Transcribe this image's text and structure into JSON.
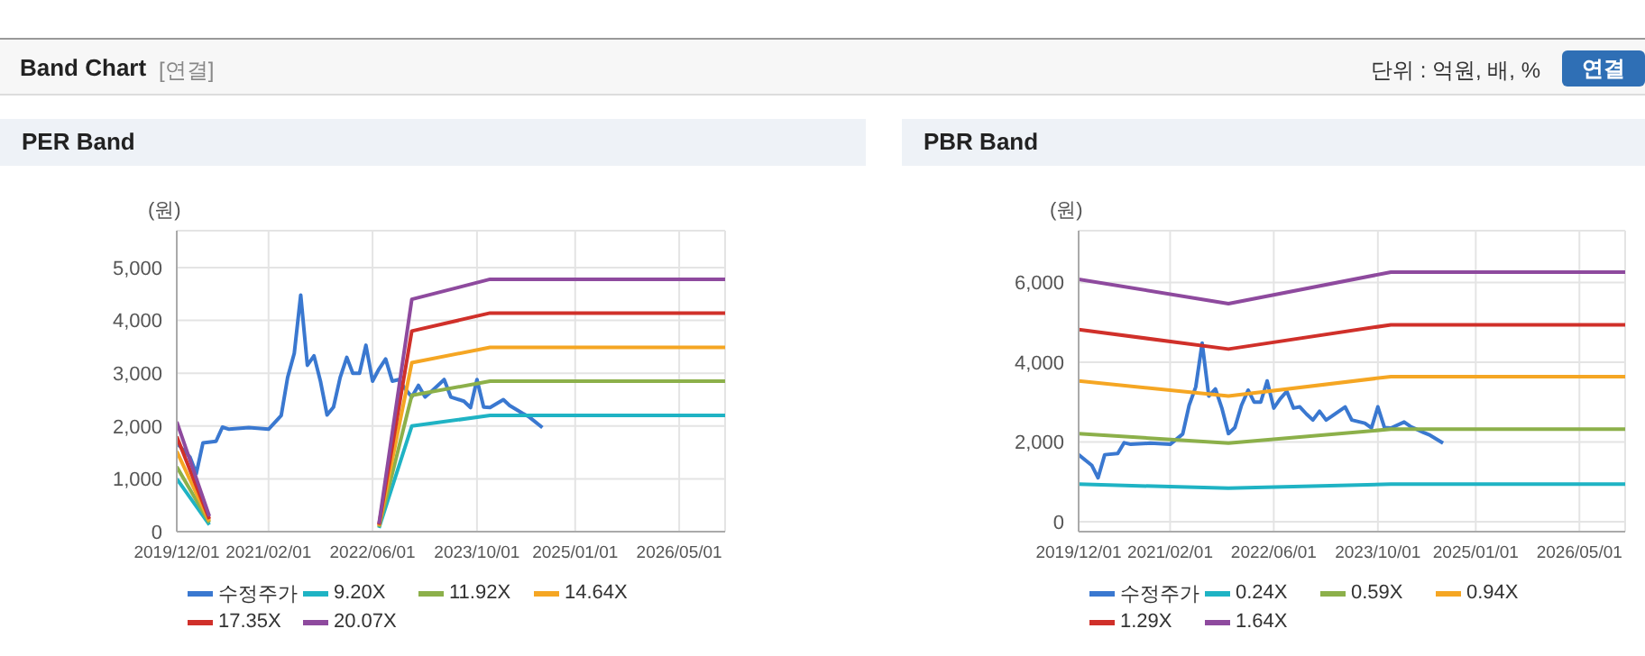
{
  "chart_data": [
    {
      "type": "line",
      "title": "PER Band",
      "ylabel": "(원)",
      "annotations": [
        "Band Chart",
        "[연결]",
        "단위 : 억원, 배, %",
        "연결"
      ],
      "xlim": [
        "2019-12-01",
        "2026-12-01"
      ],
      "xticks": [
        {
          "value": "2019-12-01",
          "label": "2019/12/01"
        },
        {
          "value": "2021-02-01",
          "label": "2021/02/01"
        },
        {
          "value": "2022-06-01",
          "label": "2022/06/01"
        },
        {
          "value": "2023-10-01",
          "label": "2023/10/01"
        },
        {
          "value": "2025-01-01",
          "label": "2025/01/01"
        },
        {
          "value": "2026-05-01",
          "label": "2026/05/01"
        }
      ],
      "ylim": [
        0,
        5700
      ],
      "yticks": [
        0,
        {
          "value": 1000,
          "label": "1,000"
        },
        {
          "value": 2000,
          "label": "2,000"
        },
        {
          "value": 3000,
          "label": "3,000"
        },
        {
          "value": 4000,
          "label": "4,000"
        },
        {
          "value": 5000,
          "label": "5,000"
        }
      ],
      "grid": true,
      "legend": "bottom",
      "series": [
        {
          "name": "수정주가",
          "color": "#3a78d0",
          "x": [
            "2019-12",
            "2020-02",
            "2020-03",
            "2020-04",
            "2020-06",
            "2020-07",
            "2020-08",
            "2020-11",
            "2021-02",
            "2021-04",
            "2021-05",
            "2021-06",
            "2021-07",
            "2021-08",
            "2021-09",
            "2021-10",
            "2021-11",
            "2021-12",
            "2022-01",
            "2022-02",
            "2022-03",
            "2022-04",
            "2022-05",
            "2022-06",
            "2022-07",
            "2022-08",
            "2022-09",
            "2022-10",
            "2022-11",
            "2022-12",
            "2023-01",
            "2023-02",
            "2023-03",
            "2023-05",
            "2023-06",
            "2023-08",
            "2023-09",
            "2023-10",
            "2023-11",
            "2023-12",
            "2024-02",
            "2024-03",
            "2024-05",
            "2024-06",
            "2024-08"
          ],
          "values": [
            1680,
            1410,
            1100,
            1680,
            1710,
            1980,
            1940,
            1970,
            1940,
            2200,
            2920,
            3380,
            4480,
            3150,
            3330,
            2850,
            2210,
            2360,
            2920,
            3300,
            3000,
            3000,
            3530,
            2850,
            3080,
            3270,
            2850,
            2880,
            2700,
            2550,
            2770,
            2550,
            2650,
            2880,
            2550,
            2470,
            2350,
            2880,
            2360,
            2350,
            2500,
            2390,
            2240,
            2170,
            1970
          ]
        },
        {
          "name": "9.20X",
          "color": "#1fb3c4",
          "x": [
            "2019-12",
            "2020-05",
            "2021-06",
            "2022-07",
            "2022-12",
            "2023-12",
            "2026-12"
          ],
          "values": [
            1000,
            130,
            null,
            70,
            2000,
            2200,
            2200
          ]
        },
        {
          "name": "11.92X",
          "color": "#8cb04a",
          "x": [
            "2019-12",
            "2020-05",
            "2021-06",
            "2022-07",
            "2022-12",
            "2023-12",
            "2026-12"
          ],
          "values": [
            1230,
            170,
            null,
            90,
            2580,
            2850,
            2850
          ]
        },
        {
          "name": "14.64X",
          "color": "#f5a623",
          "x": [
            "2019-12",
            "2020-05",
            "2021-06",
            "2022-07",
            "2022-12",
            "2023-12",
            "2026-12"
          ],
          "values": [
            1520,
            200,
            null,
            110,
            3200,
            3490,
            3490
          ]
        },
        {
          "name": "17.35X",
          "color": "#d0302a",
          "x": [
            "2019-12",
            "2020-05",
            "2021-06",
            "2022-07",
            "2022-12",
            "2023-12",
            "2026-12"
          ],
          "values": [
            1800,
            240,
            null,
            130,
            3800,
            4140,
            4140
          ]
        },
        {
          "name": "20.07X",
          "color": "#8e4a9e",
          "x": [
            "2019-12",
            "2020-05",
            "2021-06",
            "2022-07",
            "2022-12",
            "2023-12",
            "2026-12"
          ],
          "values": [
            2080,
            290,
            null,
            150,
            4400,
            4780,
            4780
          ]
        }
      ]
    },
    {
      "type": "line",
      "title": "PBR Band",
      "ylabel": "(원)",
      "xlim": [
        "2019-12-01",
        "2026-12-01"
      ],
      "xticks": [
        {
          "value": "2019-12-01",
          "label": "2019/12/01"
        },
        {
          "value": "2021-02-01",
          "label": "2021/02/01"
        },
        {
          "value": "2022-06-01",
          "label": "2022/06/01"
        },
        {
          "value": "2023-10-01",
          "label": "2023/10/01"
        },
        {
          "value": "2025-01-01",
          "label": "2025/01/01"
        },
        {
          "value": "2026-05-01",
          "label": "2026/05/01"
        }
      ],
      "ylim": [
        -250,
        7300
      ],
      "yticks": [
        0,
        {
          "value": 2000,
          "label": "2,000"
        },
        {
          "value": 4000,
          "label": "4,000"
        },
        {
          "value": 6000,
          "label": "6,000"
        }
      ],
      "grid": true,
      "legend": "bottom",
      "series": [
        {
          "name": "수정주가",
          "color": "#3a78d0",
          "x": [
            "2019-12",
            "2020-02",
            "2020-03",
            "2020-04",
            "2020-06",
            "2020-07",
            "2020-08",
            "2020-11",
            "2021-02",
            "2021-04",
            "2021-05",
            "2021-06",
            "2021-07",
            "2021-08",
            "2021-09",
            "2021-10",
            "2021-11",
            "2021-12",
            "2022-01",
            "2022-02",
            "2022-03",
            "2022-04",
            "2022-05",
            "2022-06",
            "2022-07",
            "2022-08",
            "2022-09",
            "2022-10",
            "2022-11",
            "2022-12",
            "2023-01",
            "2023-02",
            "2023-03",
            "2023-05",
            "2023-06",
            "2023-08",
            "2023-09",
            "2023-10",
            "2023-11",
            "2023-12",
            "2024-02",
            "2024-03",
            "2024-05",
            "2024-06",
            "2024-08"
          ],
          "values": [
            1680,
            1410,
            1100,
            1680,
            1710,
            1980,
            1940,
            1970,
            1940,
            2200,
            2920,
            3380,
            4480,
            3150,
            3330,
            2850,
            2210,
            2360,
            2920,
            3300,
            3000,
            3000,
            3530,
            2850,
            3080,
            3270,
            2850,
            2880,
            2700,
            2550,
            2770,
            2550,
            2650,
            2880,
            2550,
            2470,
            2350,
            2880,
            2360,
            2350,
            2500,
            2390,
            2240,
            2170,
            1970
          ]
        },
        {
          "name": "0.24X",
          "color": "#1fb3c4",
          "x": [
            "2019-12",
            "2021-11",
            "2023-12",
            "2026-12"
          ],
          "values": [
            940,
            840,
            940,
            940
          ]
        },
        {
          "name": "0.59X",
          "color": "#8cb04a",
          "x": [
            "2019-12",
            "2021-11",
            "2023-12",
            "2026-12"
          ],
          "values": [
            2210,
            1970,
            2320,
            2320
          ]
        },
        {
          "name": "0.94X",
          "color": "#f5a623",
          "x": [
            "2019-12",
            "2021-11",
            "2023-12",
            "2026-12"
          ],
          "values": [
            3530,
            3150,
            3640,
            3640
          ]
        },
        {
          "name": "1.29X",
          "color": "#d0302a",
          "x": [
            "2019-12",
            "2021-11",
            "2023-12",
            "2026-12"
          ],
          "values": [
            4820,
            4330,
            4940,
            4940
          ]
        },
        {
          "name": "1.64X",
          "color": "#8e4a9e",
          "x": [
            "2019-12",
            "2021-11",
            "2023-12",
            "2026-12"
          ],
          "values": [
            6080,
            5470,
            6260,
            6260
          ]
        }
      ]
    }
  ]
}
